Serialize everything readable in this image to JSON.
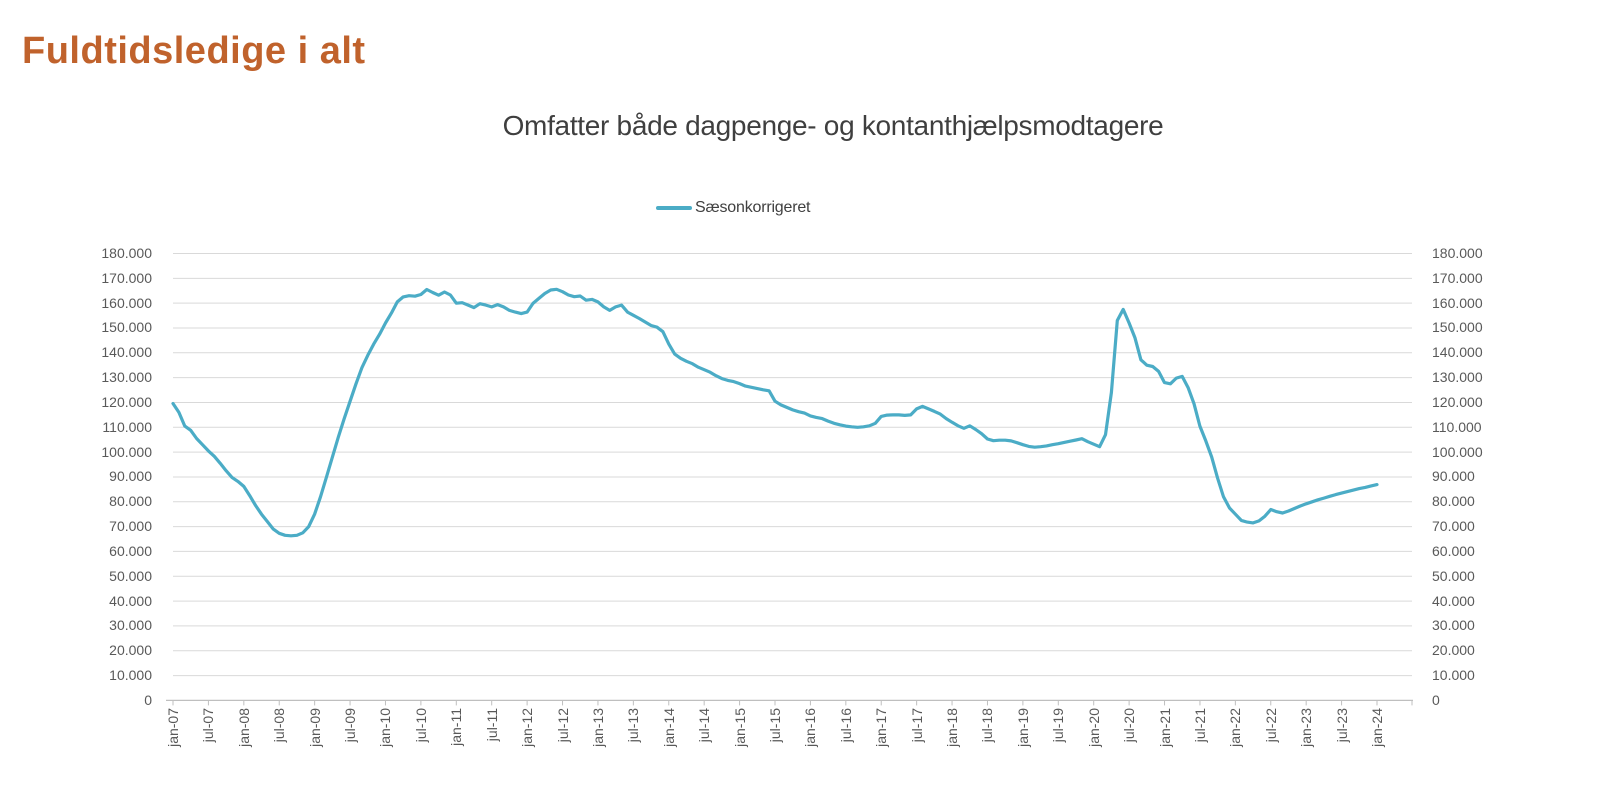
{
  "page_title": "Fuldtidsledige i alt",
  "colors": {
    "title": "#C0622C",
    "series": "#4BACC6",
    "gridline": "#D9D9D9",
    "axis": "#BFBFBF",
    "axis_text": "#595959"
  },
  "chart_data": {
    "type": "line",
    "title": "Omfatter både dagpenge- og kontanthjælpsmodtagere",
    "legend_position": "top-center",
    "grid": "horizontal",
    "ylim": [
      0,
      180000
    ],
    "y_tick_step": 10000,
    "y_tick_labels": [
      "0",
      "10.000",
      "20.000",
      "30.000",
      "40.000",
      "50.000",
      "60.000",
      "70.000",
      "80.000",
      "90.000",
      "100.000",
      "110.000",
      "120.000",
      "130.000",
      "140.000",
      "150.000",
      "160.000",
      "170.000",
      "180.000"
    ],
    "y_axis_sides": [
      "left",
      "right"
    ],
    "x_unit": "month",
    "x_tick_every": 6,
    "x_tick_labels": [
      "jan-07",
      "jul-07",
      "jan-08",
      "jul-08",
      "jan-09",
      "jul-09",
      "jan-10",
      "jul-10",
      "jan-11",
      "jul-11",
      "jan-12",
      "jul-12",
      "jan-13",
      "jul-13",
      "jan-14",
      "jul-14",
      "jan-15",
      "jul-15",
      "jan-16",
      "jul-16",
      "jan-17",
      "jul-17",
      "jan-18",
      "jul-18",
      "jan-19",
      "jul-19",
      "jan-20",
      "jul-20",
      "jan-21",
      "jul-21",
      "jan-22",
      "jul-22",
      "jan-23",
      "jul-23",
      "jan-24"
    ],
    "series": [
      {
        "name": "Sæsonkorrigeret",
        "color": "#4BACC6",
        "start": "jan-07",
        "end": "jan-24",
        "values": [
          119600,
          116000,
          110500,
          108800,
          105500,
          103000,
          100500,
          98300,
          95500,
          92500,
          89800,
          88200,
          86200,
          82500,
          78500,
          75000,
          72000,
          69000,
          67300,
          66500,
          66300,
          66500,
          67500,
          70000,
          75000,
          82000,
          90000,
          98000,
          106000,
          113500,
          120500,
          127500,
          134000,
          139000,
          143500,
          147500,
          152000,
          156000,
          160500,
          162500,
          163000,
          162800,
          163500,
          165500,
          164300,
          163200,
          164500,
          163300,
          160000,
          160200,
          159200,
          158200,
          159800,
          159200,
          158500,
          159400,
          158500,
          157100,
          156400,
          155800,
          156400,
          159900,
          161900,
          163900,
          165300,
          165600,
          164600,
          163300,
          162600,
          162900,
          161200,
          161500,
          160500,
          158500,
          157100,
          158500,
          159200,
          156400,
          155100,
          153800,
          152400,
          151000,
          150300,
          148500,
          143500,
          139500,
          137800,
          136600,
          135600,
          134200,
          133200,
          132200,
          130800,
          129600,
          128900,
          128400,
          127600,
          126600,
          126100,
          125600,
          125100,
          124700,
          120500,
          119000,
          118000,
          117000,
          116300,
          115700,
          114600,
          114000,
          113500,
          112500,
          111600,
          111000,
          110500,
          110200,
          110000,
          110200,
          110600,
          111600,
          114400,
          114900,
          115000,
          115000,
          114800,
          115000,
          117400,
          118400,
          117400,
          116400,
          115300,
          113500,
          112000,
          110600,
          109600,
          110600,
          109100,
          107400,
          105300,
          104600,
          104800,
          104800,
          104500,
          103800,
          103000,
          102300,
          102000,
          102200,
          102500,
          103000,
          103400,
          103900,
          104400,
          104900,
          105400,
          104200,
          103200,
          102200,
          107000,
          124000,
          153000,
          157500,
          152000,
          146000,
          137200,
          135000,
          134500,
          132500,
          128000,
          127500,
          129800,
          130500,
          126000,
          119500,
          110500,
          104500,
          98000,
          89500,
          82000,
          77500,
          75000,
          72500,
          71800,
          71500,
          72300,
          74200,
          76900,
          76000,
          75500,
          76300,
          77300,
          78300,
          79200,
          80000,
          80800,
          81500,
          82200,
          82900,
          83500,
          84100,
          84700,
          85300,
          85800,
          86400,
          86900
        ]
      }
    ]
  }
}
